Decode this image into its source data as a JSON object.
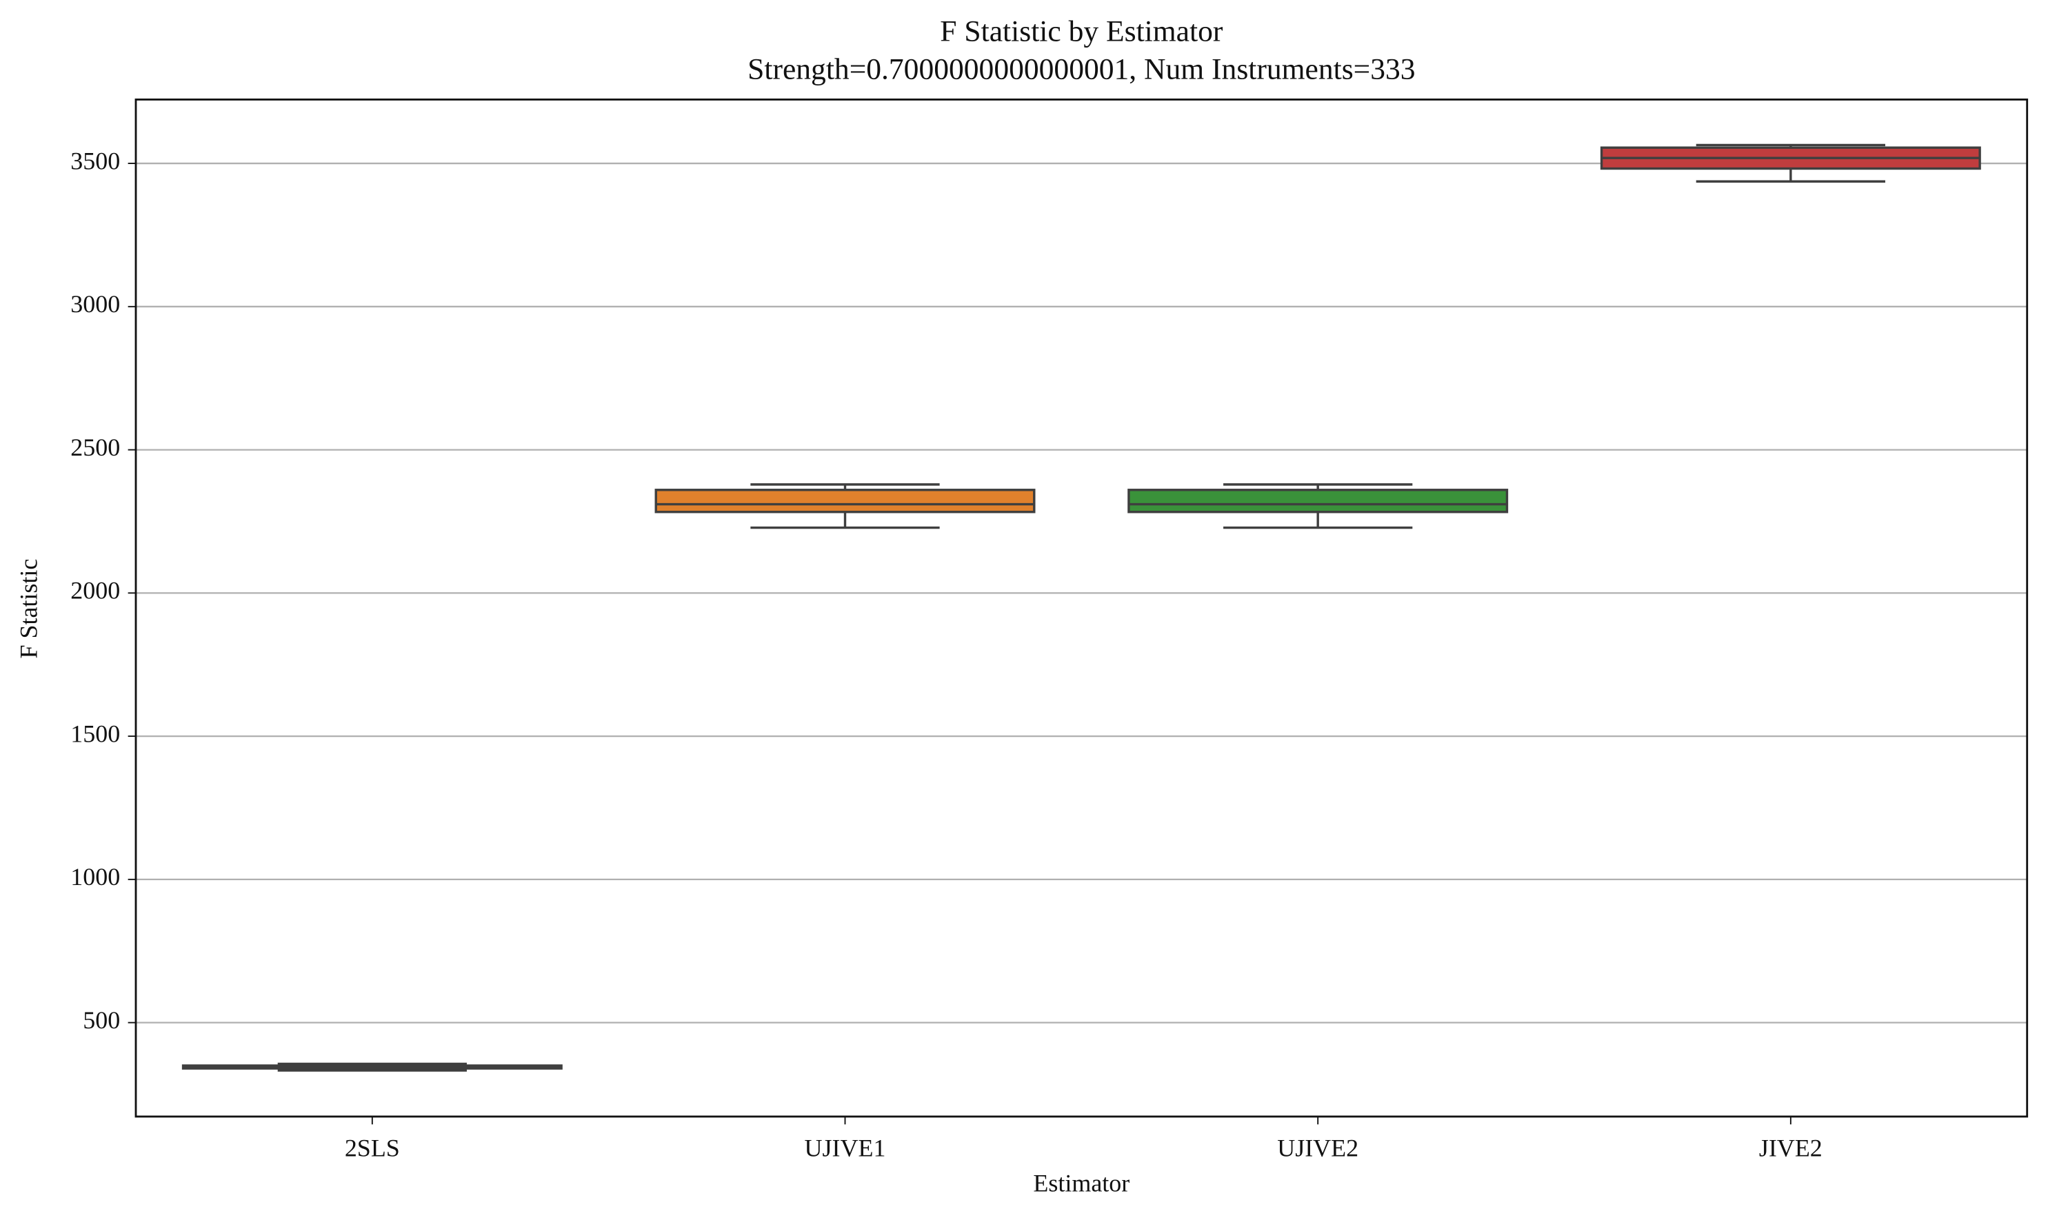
{
  "chart_data": {
    "type": "box",
    "title": "F Statistic by Estimator",
    "subtitle": "Strength=0.7000000000000001, Num Instruments=333",
    "x_label": "Estimator",
    "y_label": "F Statistic",
    "categories": [
      "2SLS",
      "UJIVE1",
      "UJIVE2",
      "JIVE2"
    ],
    "colors": [
      "#3274a1",
      "#e1812c",
      "#3a923a",
      "#c03d3e"
    ],
    "boxes": [
      {
        "whislo": 333,
        "q1": 340,
        "med": 345,
        "q3": 350,
        "whishi": 356
      },
      {
        "whislo": 2228,
        "q1": 2283,
        "med": 2310,
        "q3": 2360,
        "whishi": 2379
      },
      {
        "whislo": 2228,
        "q1": 2283,
        "med": 2310,
        "q3": 2360,
        "whishi": 2379
      },
      {
        "whislo": 3437,
        "q1": 3482,
        "med": 3519,
        "q3": 3555,
        "whishi": 3564
      }
    ],
    "ylim": [
      172,
      3723
    ],
    "yticks": [
      500,
      1000,
      1500,
      2000,
      2500,
      3000,
      3500
    ],
    "grid": true
  }
}
